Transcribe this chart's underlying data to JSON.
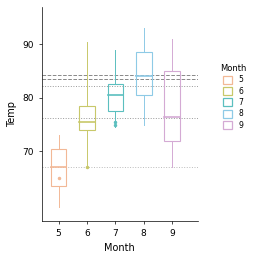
{
  "xlabel": "Month",
  "ylabel": "Temp",
  "boxes": [
    {
      "month": 5,
      "q1": 63.5,
      "q3": 70.5,
      "median": 67.0,
      "whisker_low": 59.5,
      "whisker_high": 73.0,
      "outliers": [
        65.0
      ],
      "color": "#f2b896"
    },
    {
      "month": 6,
      "q1": 74.0,
      "q3": 78.5,
      "median": 75.5,
      "whisker_low": 67.5,
      "whisker_high": 90.5,
      "outliers": [
        67.0
      ],
      "color": "#c8c86a"
    },
    {
      "month": 7,
      "q1": 77.5,
      "q3": 82.5,
      "median": 80.5,
      "whisker_low": 74.5,
      "whisker_high": 89.0,
      "outliers": [
        75.5,
        75.0
      ],
      "color": "#5bbfbf"
    },
    {
      "month": 8,
      "q1": 80.5,
      "q3": 88.5,
      "median": 84.0,
      "whisker_low": 75.0,
      "whisker_high": 93.0,
      "outliers": [],
      "color": "#8ecae6"
    },
    {
      "month": 9,
      "q1": 72.0,
      "q3": 85.0,
      "median": 76.5,
      "whisker_low": 67.0,
      "whisker_high": 91.0,
      "outliers": [],
      "color": "#d4aad4"
    }
  ],
  "hlines": [
    {
      "y": 84.3,
      "style": "dashed",
      "color": "#888888",
      "lw": 0.7
    },
    {
      "y": 83.5,
      "style": "dashed",
      "color": "#888888",
      "lw": 0.7
    },
    {
      "y": 82.2,
      "style": "dotted",
      "color": "#999999",
      "lw": 0.7
    },
    {
      "y": 76.2,
      "style": "dotted",
      "color": "#999999",
      "lw": 0.7
    },
    {
      "y": 67.0,
      "style": "dotted",
      "color": "#bbbbbb",
      "lw": 0.7
    }
  ],
  "ylim": [
    57,
    97
  ],
  "xlim": [
    4.4,
    9.9
  ],
  "yticks": [
    70,
    80,
    90
  ],
  "xticks": [
    5,
    6,
    7,
    8,
    9
  ],
  "bg_color": "#ffffff",
  "legend_title": "Month",
  "legend_colors": [
    "#f2b896",
    "#c8c86a",
    "#5bbfbf",
    "#8ecae6",
    "#d4aad4"
  ],
  "legend_labels": [
    "5",
    "6",
    "7",
    "8",
    "9"
  ],
  "box_width": 0.55
}
